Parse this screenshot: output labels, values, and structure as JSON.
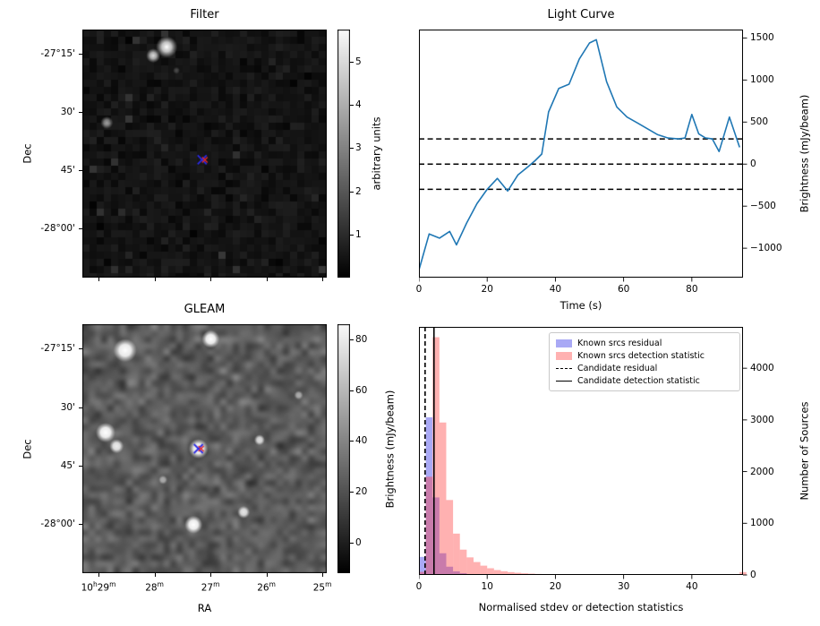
{
  "chart_data": [
    {
      "type": "heatmap",
      "title": "Filter",
      "xlabel": "",
      "ylabel": "Dec",
      "ytick_labels": [
        "-27°15'",
        "30'",
        "45'",
        "-28°00'"
      ],
      "colorbar": {
        "label": "arbitrary units",
        "ticks": [
          1,
          2,
          3,
          4,
          5
        ],
        "range": [
          0,
          5.75
        ]
      },
      "description": "Dark noisy filtered radio image with a few bright sources and a candidate marker",
      "sources": [
        {
          "x": 0.345,
          "y": 0.07,
          "r": 12,
          "b": 1.0
        },
        {
          "x": 0.29,
          "y": 0.105,
          "r": 8,
          "b": 0.85
        },
        {
          "x": 0.1,
          "y": 0.375,
          "r": 7,
          "b": 0.6
        },
        {
          "x": 0.385,
          "y": 0.165,
          "r": 4,
          "b": 0.25
        }
      ],
      "marker": {
        "x": 0.49,
        "y": 0.525,
        "primary_color": "#2a2ae6",
        "secondary_color": "#e62a2a"
      }
    },
    {
      "type": "line",
      "title": "Light Curve",
      "xlabel": "Time (s)",
      "ylabel": "Brightness (mJy/beam)",
      "xlim": [
        0,
        95
      ],
      "ylim": [
        -1350,
        1600
      ],
      "xticks": [
        0,
        20,
        40,
        60,
        80
      ],
      "yticks": [
        -1000,
        -500,
        0,
        500,
        1000,
        1500
      ],
      "hlines": [
        300,
        0,
        -300
      ],
      "line_color": "#1f77b4",
      "series": [
        {
          "name": "candidate light curve",
          "x": [
            0,
            3,
            6,
            9,
            11,
            14,
            17,
            20,
            23,
            26,
            29,
            32,
            34,
            36,
            38,
            41,
            44,
            47,
            50,
            52,
            55,
            58,
            61,
            64,
            67,
            70,
            73,
            76,
            78,
            80,
            82,
            84,
            86,
            88,
            91,
            94
          ],
          "y": [
            -1260,
            -830,
            -880,
            -800,
            -960,
            -700,
            -470,
            -300,
            -170,
            -320,
            -130,
            -30,
            40,
            120,
            620,
            900,
            950,
            1250,
            1440,
            1480,
            980,
            680,
            560,
            490,
            420,
            350,
            310,
            300,
            310,
            590,
            360,
            310,
            300,
            150,
            560,
            200
          ]
        }
      ]
    },
    {
      "type": "heatmap",
      "title": "GLEAM",
      "xlabel": "RA",
      "ylabel": "Dec",
      "xtick_labels": [
        "10h29m",
        "28m",
        "27m",
        "26m",
        "25m"
      ],
      "ytick_labels": [
        "-27°15'",
        "30'",
        "45'",
        "-28°00'"
      ],
      "colorbar": {
        "label": "Brightness (mJy/beam)",
        "ticks": [
          0,
          20,
          40,
          60,
          80
        ],
        "range": [
          -12,
          86
        ]
      },
      "description": "GLEAM survey cutout, smooth mid-gray noise with several bright white sources and candidate marker",
      "sources": [
        {
          "x": 0.175,
          "y": 0.105,
          "r": 13,
          "b": 1.0
        },
        {
          "x": 0.525,
          "y": 0.06,
          "r": 10,
          "b": 1.0
        },
        {
          "x": 0.095,
          "y": 0.435,
          "r": 11,
          "b": 1.0
        },
        {
          "x": 0.14,
          "y": 0.49,
          "r": 8,
          "b": 0.9
        },
        {
          "x": 0.475,
          "y": 0.5,
          "r": 11,
          "b": 1.0
        },
        {
          "x": 0.725,
          "y": 0.465,
          "r": 6,
          "b": 0.8
        },
        {
          "x": 0.455,
          "y": 0.805,
          "r": 10,
          "b": 1.0
        },
        {
          "x": 0.66,
          "y": 0.755,
          "r": 7,
          "b": 0.85
        },
        {
          "x": 0.33,
          "y": 0.625,
          "r": 5,
          "b": 0.5
        },
        {
          "x": 0.885,
          "y": 0.285,
          "r": 5,
          "b": 0.5
        }
      ],
      "marker": {
        "x": 0.475,
        "y": 0.5,
        "primary_color": "#2a2ae6",
        "secondary_color": "#e62a2a"
      }
    },
    {
      "type": "bar",
      "title": "",
      "xlabel": "Normalised stdev or detection statistics",
      "ylabel": "Number of Sources",
      "xlim": [
        0,
        47.5
      ],
      "ylim": [
        0,
        4800
      ],
      "xticks": [
        0,
        10,
        20,
        30,
        40
      ],
      "yticks": [
        0,
        1000,
        2000,
        3000,
        4000
      ],
      "bin_width": 1,
      "series": [
        {
          "name": "Known srcs residual",
          "color": "rgba(40,40,230,0.40)",
          "bin_start": 0,
          "counts": [
            350,
            3050,
            1500,
            420,
            160,
            70,
            35,
            18,
            9,
            5,
            3,
            2,
            1,
            1,
            1,
            0,
            0,
            0,
            0,
            0
          ]
        },
        {
          "name": "Known srcs detection statistic",
          "color": "rgba(255,50,50,0.38)",
          "bin_start": 0,
          "counts": [
            60,
            1900,
            4600,
            2950,
            1450,
            800,
            490,
            340,
            250,
            180,
            130,
            95,
            72,
            55,
            42,
            32,
            25,
            19,
            15,
            12,
            10,
            8,
            7,
            6,
            5,
            5,
            4,
            4,
            3,
            3,
            3,
            2,
            2,
            2,
            2,
            2,
            1,
            1,
            1,
            1,
            1,
            1,
            1,
            1,
            1,
            1,
            1,
            55
          ]
        }
      ],
      "vlines": [
        {
          "name": "Candidate residual",
          "x": 0.9,
          "style": "dashed"
        },
        {
          "name": "Candidate detection statistic",
          "x": 2.2,
          "style": "solid"
        }
      ],
      "legend_position": "upper right"
    }
  ]
}
